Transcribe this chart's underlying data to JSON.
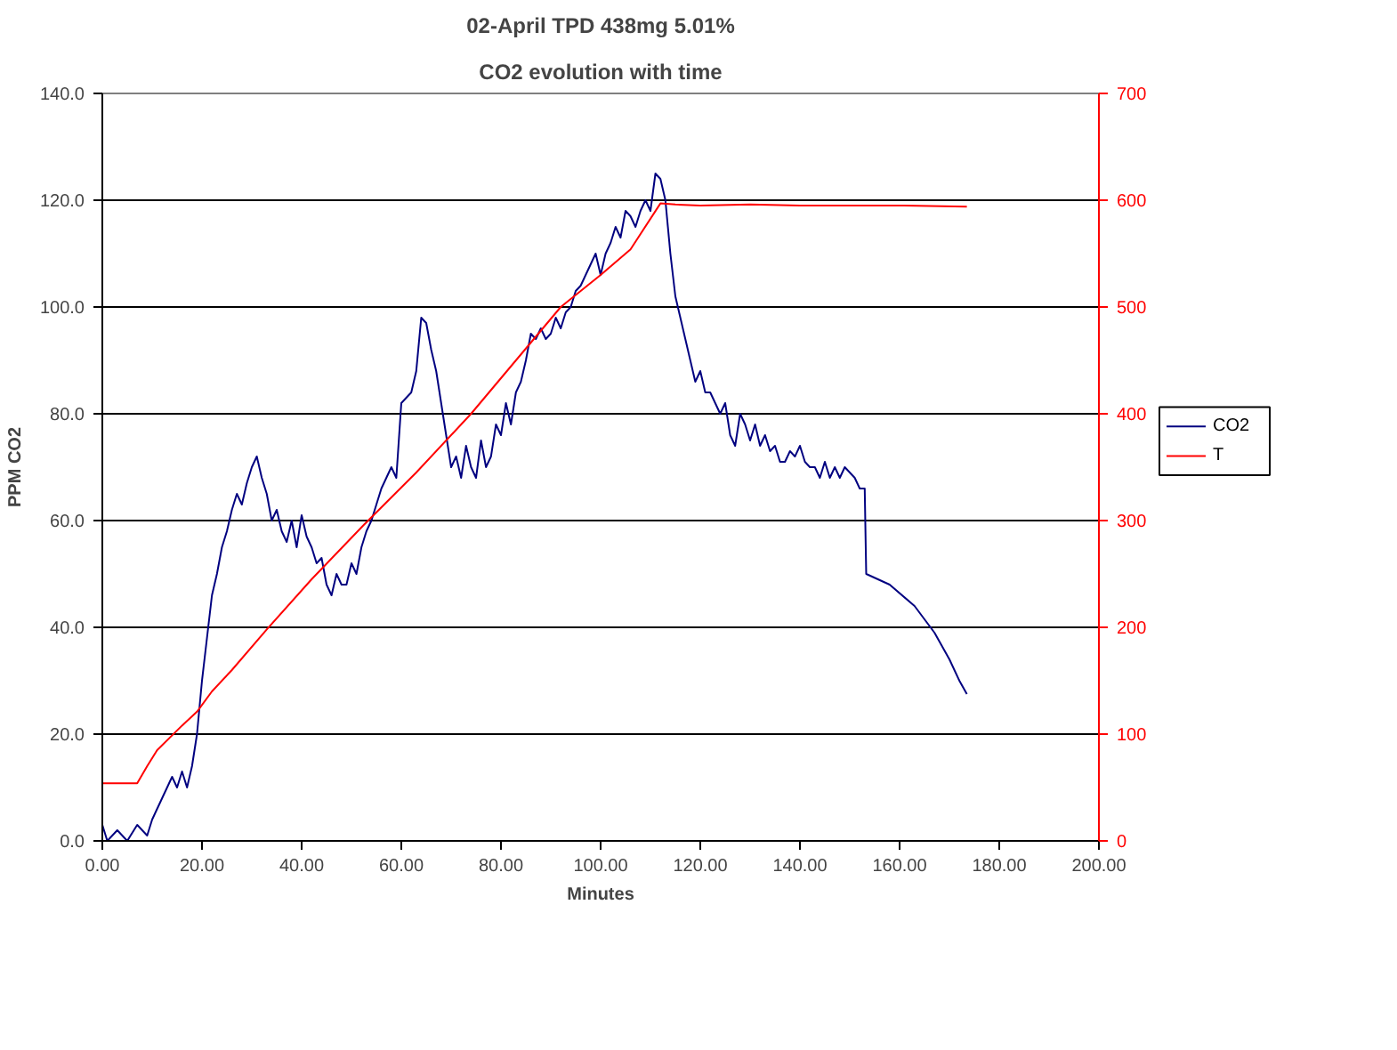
{
  "chart_data": {
    "type": "line",
    "title": "02-April TPD 438mg 5.01%",
    "subtitle": "CO2 evolution with time",
    "xlabel": "Minutes",
    "ylabel": "PPM CO2",
    "xlim": [
      0,
      200
    ],
    "xticks": [
      {
        "value": 0,
        "label": "0.00"
      },
      {
        "value": 20,
        "label": "20.00"
      },
      {
        "value": 40,
        "label": "40.00"
      },
      {
        "value": 60,
        "label": "60.00"
      },
      {
        "value": 80,
        "label": "80.00"
      },
      {
        "value": 100,
        "label": "100.00"
      },
      {
        "value": 120,
        "label": "120.00"
      },
      {
        "value": 140,
        "label": "140.00"
      },
      {
        "value": 160,
        "label": "160.00"
      },
      {
        "value": 180,
        "label": "180.00"
      },
      {
        "value": 200,
        "label": "200.00"
      }
    ],
    "ylim": [
      0,
      140
    ],
    "yticks": [
      {
        "value": 0,
        "label": "0.0"
      },
      {
        "value": 20,
        "label": "20.0"
      },
      {
        "value": 40,
        "label": "40.0"
      },
      {
        "value": 60,
        "label": "60.0"
      },
      {
        "value": 80,
        "label": "80.0"
      },
      {
        "value": 100,
        "label": "100.0"
      },
      {
        "value": 120,
        "label": "120.0"
      },
      {
        "value": 140,
        "label": "140.0"
      }
    ],
    "y2lim": [
      0,
      700
    ],
    "y2ticks": [
      0,
      100,
      200,
      300,
      400,
      500,
      600,
      700
    ],
    "grid": "y",
    "legend": "right",
    "marker": "none",
    "line_style": "solid",
    "series": [
      {
        "name": "CO2",
        "color": "#000080",
        "x": [
          0,
          1,
          3,
          5,
          7,
          9,
          10,
          12,
          14,
          15,
          16,
          17,
          18,
          19,
          20,
          21,
          22,
          23,
          24,
          25,
          26,
          27,
          28,
          29,
          30,
          31,
          32,
          33,
          34,
          35,
          36,
          37,
          38,
          39,
          40,
          41,
          42,
          43,
          44,
          45,
          46,
          47,
          48,
          49,
          50,
          51,
          52,
          53,
          54,
          55,
          56,
          57,
          58,
          59,
          60,
          61,
          62,
          63,
          64,
          65,
          66,
          67,
          68,
          69,
          70,
          71,
          72,
          73,
          74,
          75,
          76,
          77,
          78,
          79,
          80,
          81,
          82,
          83,
          84,
          85,
          86,
          87,
          88,
          89,
          90,
          91,
          92,
          93,
          94,
          95,
          96,
          97,
          98,
          99,
          100,
          101,
          102,
          103,
          104,
          105,
          106,
          107,
          108,
          109,
          110,
          111,
          112,
          113,
          114,
          115,
          116,
          117,
          118,
          119,
          120,
          121,
          122,
          123,
          124,
          125,
          126,
          127,
          128,
          129,
          130,
          131,
          132,
          133,
          134,
          135,
          136,
          137,
          138,
          139,
          140,
          141,
          142,
          143,
          144,
          145,
          146,
          147,
          148,
          149,
          150,
          151,
          152,
          153,
          153.3,
          158,
          163,
          167,
          170,
          172,
          173.5
        ],
        "values": [
          3,
          0,
          2,
          0,
          3,
          1,
          4,
          8,
          12,
          10,
          13,
          10,
          14,
          20,
          30,
          38,
          46,
          50,
          55,
          58,
          62,
          65,
          63,
          67,
          70,
          72,
          68,
          65,
          60,
          62,
          58,
          56,
          60,
          55,
          61,
          57,
          55,
          52,
          53,
          48,
          46,
          50,
          48,
          48,
          52,
          50,
          55,
          58,
          60,
          63,
          66,
          68,
          70,
          68,
          82,
          83,
          84,
          88,
          98,
          97,
          92,
          88,
          82,
          76,
          70,
          72,
          68,
          74,
          70,
          68,
          75,
          70,
          72,
          78,
          76,
          82,
          78,
          84,
          86,
          90,
          95,
          94,
          96,
          94,
          95,
          98,
          96,
          99,
          100,
          103,
          104,
          106,
          108,
          110,
          106,
          110,
          112,
          115,
          113,
          118,
          117,
          115,
          118,
          120,
          118,
          125,
          124,
          120,
          110,
          102,
          98,
          94,
          90,
          86,
          88,
          84,
          84,
          82,
          80,
          82,
          76,
          74,
          80,
          78,
          75,
          78,
          74,
          76,
          73,
          74,
          71,
          71,
          73,
          72,
          74,
          71,
          70,
          70,
          68,
          71,
          68,
          70,
          68,
          70,
          69,
          68,
          66,
          66,
          50,
          48,
          44,
          39,
          34,
          30,
          27.5
        ]
      },
      {
        "name": "T",
        "color": "#ff0000",
        "axis": "y2",
        "x": [
          0,
          7,
          9,
          11,
          13.6,
          16,
          19,
          22,
          26,
          33,
          42,
          52.5,
          63,
          74,
          83,
          92,
          100,
          106,
          112,
          115,
          120,
          130,
          140,
          160,
          173.5
        ],
        "values": [
          54,
          54,
          70,
          85,
          97,
          108,
          121,
          140,
          160,
          198,
          245,
          296,
          345,
          400,
          450,
          500,
          530,
          554,
          597,
          596,
          595,
          596,
          595,
          595,
          594
        ]
      }
    ]
  }
}
